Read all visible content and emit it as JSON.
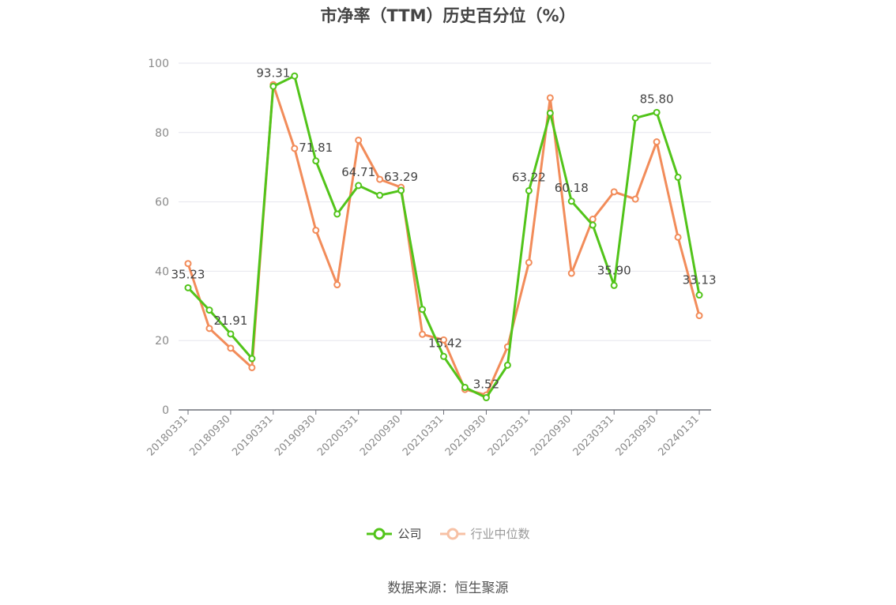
{
  "chart_data": {
    "type": "line",
    "title": "市净率（TTM）历史百分位（%）",
    "x": [
      "20180331",
      "20180630",
      "20180930",
      "20181231",
      "20190331",
      "20190630",
      "20190930",
      "20191231",
      "20200331",
      "20200630",
      "20200930",
      "20201231",
      "20210331",
      "20210630",
      "20210930",
      "20211231",
      "20220331",
      "20220630",
      "20220930",
      "20221231",
      "20230331",
      "20230630",
      "20230930",
      "20231231",
      "20240131"
    ],
    "x_tick_labels": [
      "20180331",
      "20180930",
      "20190331",
      "20190930",
      "20200331",
      "20200930",
      "20210331",
      "20210930",
      "20220331",
      "20220930",
      "20230331",
      "20230930",
      "20240131"
    ],
    "ylim": [
      0,
      100
    ],
    "y_ticks": [
      0,
      20,
      40,
      60,
      80,
      100
    ],
    "grid": true,
    "legend_position": "bottom",
    "series": [
      {
        "name": "公司",
        "color": "#52c41a",
        "values": [
          35.23,
          28.8,
          21.91,
          14.8,
          93.31,
          96.3,
          71.81,
          56.5,
          64.71,
          61.9,
          63.29,
          29.0,
          15.42,
          6.5,
          3.52,
          12.9,
          63.22,
          85.6,
          60.18,
          53.3,
          35.9,
          84.2,
          85.8,
          67.1,
          33.13
        ],
        "labels": {
          "0": "35.23",
          "2": "21.91",
          "4": "93.31",
          "6": "71.81",
          "8": "64.71",
          "10": "63.29",
          "12": "15.42",
          "14": "3.52",
          "16": "63.22",
          "18": "60.18",
          "20": "35.90",
          "22": "85.80",
          "24": "33.13"
        }
      },
      {
        "name": "行业中位数",
        "color": "#f28c5a",
        "values": [
          42.2,
          23.5,
          17.8,
          12.2,
          93.8,
          75.4,
          51.8,
          36.1,
          77.8,
          66.5,
          64.2,
          21.8,
          20.2,
          5.9,
          4.3,
          18.2,
          42.5,
          90.0,
          39.4,
          55.0,
          62.9,
          60.8,
          77.3,
          49.8,
          27.2
        ]
      }
    ]
  },
  "source": "数据来源：恒生聚源"
}
